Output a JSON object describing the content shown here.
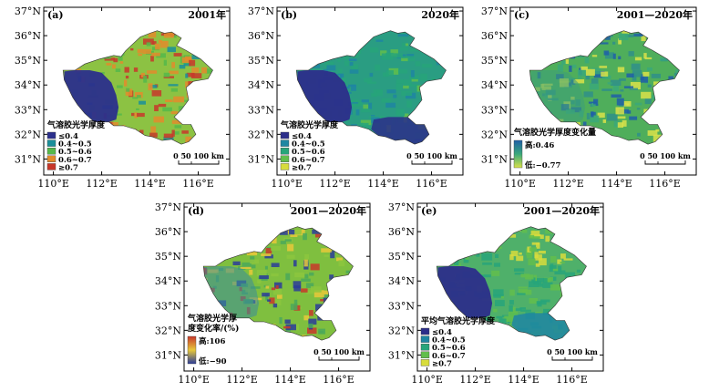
{
  "axes": {
    "lat_ticks": [
      "37°N",
      "36°N",
      "35°N",
      "34°N",
      "33°N",
      "32°N",
      "31°N"
    ],
    "lon_ticks": [
      "110°E",
      "112°E",
      "114°E",
      "116°E"
    ]
  },
  "scale_bar": {
    "label": "0 50 100 km"
  },
  "colors": {
    "c1": "#2b2f8c",
    "c2": "#1a8f9a",
    "c3": "#55b94a",
    "c4": "#e38b2b",
    "c5": "#c8372a",
    "q1": "#2c2e8a",
    "q2": "#1e86a2",
    "q3": "#27a57a",
    "q4": "#62be4c",
    "q5": "#d7dc3c",
    "grad_high": "#1f5fa8",
    "grad_mid": "#3aa87a",
    "grad_low": "#d9e24a",
    "rate_high": "#c8372a",
    "rate_mid": "#e7c83a",
    "rate_low": "#2b3c99"
  },
  "panels": [
    {
      "id": "a",
      "label": "(a)",
      "title": "2001年",
      "legend": {
        "type": "classes",
        "title": "气溶胶光学厚度",
        "items": [
          {
            "label": "≤0.4",
            "color": "#2b2f8c"
          },
          {
            "label": "0.4~0.5",
            "color": "#1a8f9a"
          },
          {
            "label": "0.5~0.6",
            "color": "#55b94a"
          },
          {
            "label": "0.6~0.7",
            "color": "#e38b2b"
          },
          {
            "label": "≥0.7",
            "color": "#c8372a"
          }
        ]
      },
      "map_fill": "#8cc243",
      "west_fill": "#2b2f8c"
    },
    {
      "id": "b",
      "label": "(b)",
      "title": "2020年",
      "legend": {
        "type": "classes",
        "title": "气溶胶光学厚度",
        "items": [
          {
            "label": "≤0.4",
            "color": "#2c2e8a"
          },
          {
            "label": "0.4~0.5",
            "color": "#1e86a2"
          },
          {
            "label": "0.5~0.6",
            "color": "#27a57a"
          },
          {
            "label": "0.6~0.7",
            "color": "#62be4c"
          },
          {
            "label": "≥0.7",
            "color": "#d7dc3c"
          }
        ]
      },
      "map_fill": "#2a9d82",
      "west_fill": "#2c2e8a"
    },
    {
      "id": "c",
      "label": "(c)",
      "title": "2001—2020年",
      "legend": {
        "type": "gradient",
        "title": "气溶胶光学厚度变化量",
        "high": "高:0.46",
        "low": "低:−0.77"
      },
      "map_fill": "#4fae5b",
      "west_fill": "#3d9e7a"
    },
    {
      "id": "d",
      "label": "(d)",
      "title": "2001—2020年",
      "legend": {
        "type": "gradient_rate",
        "title": "气溶胶光学厚",
        "title2": "度变化率/(%)",
        "high": "高:106",
        "low": "低:−90"
      },
      "map_fill": "#7fbf3f",
      "west_fill": "#3a8c9a"
    },
    {
      "id": "e",
      "label": "(e)",
      "title": "2001—2020年",
      "legend": {
        "type": "classes",
        "title": "平均气溶胶光学厚度",
        "items": [
          {
            "label": "≤0.4",
            "color": "#2c2e8a"
          },
          {
            "label": "0.4~0.5",
            "color": "#1e86a2"
          },
          {
            "label": "0.5~0.6",
            "color": "#27a57a"
          },
          {
            "label": "0.6~0.7",
            "color": "#62be4c"
          },
          {
            "label": "≥0.7",
            "color": "#d7dc3c"
          }
        ]
      },
      "map_fill": "#4fb06a",
      "west_fill": "#2c2e8a"
    }
  ]
}
